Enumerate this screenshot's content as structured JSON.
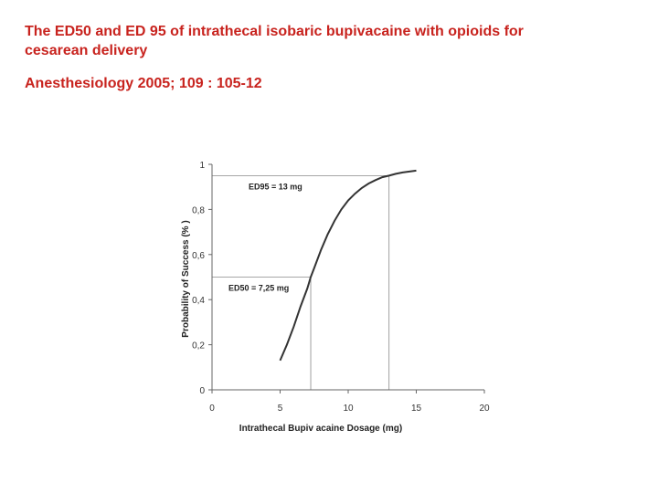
{
  "slide": {
    "title": "The ED50 and ED 95 of intrathecal isobaric bupivacaine with opioids for cesarean delivery",
    "citation": "Anesthesiology 2005; 109 : 105-12"
  },
  "colors": {
    "text_accent": "#c8231e",
    "curve": "#333333",
    "axis": "#666666",
    "guide": "#888888"
  },
  "chart_data": {
    "type": "line",
    "title": "",
    "xlabel": "Intrathecal Bupiv acaine Dosage (mg)",
    "ylabel": "Probability of Success (% )",
    "xlim": [
      0,
      20
    ],
    "ylim": [
      0,
      1
    ],
    "x_ticks": [
      0,
      5,
      10,
      15,
      20
    ],
    "y_ticks": [
      0,
      0.2,
      0.4,
      0.6,
      0.8,
      1
    ],
    "x_tick_labels": [
      "0",
      "5",
      "10",
      "15",
      "20"
    ],
    "y_tick_labels": [
      "0",
      "0,2",
      "0,4",
      "0,6",
      "0,8",
      "1"
    ],
    "grid": false,
    "series": [
      {
        "x": [
          5,
          5.5,
          6,
          6.5,
          7,
          7.25,
          7.5,
          8,
          8.5,
          9,
          9.5,
          10,
          10.5,
          11,
          11.5,
          12,
          12.5,
          13,
          13.5,
          14,
          14.5,
          15
        ],
        "y": [
          0.13,
          0.2,
          0.28,
          0.37,
          0.45,
          0.5,
          0.54,
          0.62,
          0.69,
          0.75,
          0.8,
          0.84,
          0.87,
          0.895,
          0.915,
          0.93,
          0.943,
          0.95,
          0.958,
          0.964,
          0.968,
          0.972
        ]
      }
    ],
    "annotations": [
      {
        "label": "ED95 = 13 mg",
        "x": 13,
        "y": 0.95
      },
      {
        "label": "ED50 = 7,25 mg",
        "x": 7.25,
        "y": 0.5
      }
    ]
  }
}
